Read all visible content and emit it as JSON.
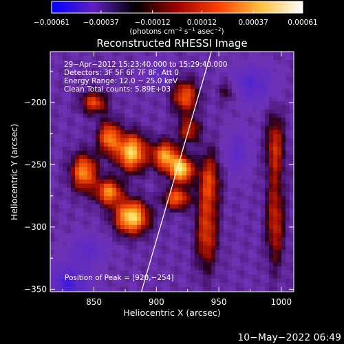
{
  "chart_data": {
    "type": "heatmap",
    "title": "Reconstructed RHESSI Image",
    "xlabel": "Heliocentric X (arcsec)",
    "ylabel": "Heliocentric Y (arcsec)",
    "xlim": [
      815,
      1010
    ],
    "ylim": [
      -352,
      -159
    ],
    "x_ticks": [
      {
        "value": 850,
        "label": "850"
      },
      {
        "value": 900,
        "label": "900"
      },
      {
        "value": 950,
        "label": "950"
      },
      {
        "value": 1000,
        "label": "1000"
      }
    ],
    "y_ticks": [
      {
        "value": -200,
        "label": "−200"
      },
      {
        "value": -250,
        "label": "−250"
      },
      {
        "value": -300,
        "label": "−300"
      },
      {
        "value": -350,
        "label": "−350"
      }
    ],
    "colorbar": {
      "range": [
        -0.00061,
        0.00061
      ],
      "tick_values": [
        -0.00061,
        -0.00037,
        -0.00012,
        0.00012,
        0.00037,
        0.00061
      ],
      "tick_labels": [
        "−0.00061",
        "−0.00037",
        "−0.00012",
        "0.00012",
        "0.00037",
        "0.00061"
      ],
      "unit_label_parts": [
        "(photons cm",
        "−2",
        " s",
        "−1",
        " asec",
        "−2",
        ")"
      ],
      "colors": [
        "#0000ff",
        "#6020c0",
        "#000000",
        "#a00000",
        "#ff4000",
        "#ffc040",
        "#ffffff"
      ]
    },
    "annotations": [
      "29−Apr−2012 15:23:40.000 to 15:29:40.000",
      "Detectors: 3F 5F 6F 7F 8F, Att 0",
      "Energy Range: 12.0 − 25.0 keV",
      "Clean     Total counts: 5.89E+03"
    ],
    "peak_label": "Position of Peak = [920,−254]",
    "peak": {
      "x": 920,
      "y": -254
    },
    "limb_line": [
      {
        "x": 888,
        "y": -352
      },
      {
        "x": 944,
        "y": -159
      }
    ],
    "sources": [
      {
        "x": 880,
        "y": -292,
        "rx": 9,
        "ry": 9,
        "amp": 1.0
      },
      {
        "x": 880,
        "y": -240,
        "rx": 8,
        "ry": 10,
        "amp": 0.95
      },
      {
        "x": 862,
        "y": -272,
        "rx": 7,
        "ry": 7,
        "amp": 0.75
      },
      {
        "x": 842,
        "y": -256,
        "rx": 7,
        "ry": 10,
        "amp": 0.75
      },
      {
        "x": 862,
        "y": -228,
        "rx": 6,
        "ry": 9,
        "amp": 0.7
      },
      {
        "x": 850,
        "y": -200,
        "rx": 7,
        "ry": 6,
        "amp": 0.55
      },
      {
        "x": 920,
        "y": -254,
        "rx": 6,
        "ry": 7,
        "amp": 1.0
      },
      {
        "x": 907,
        "y": -243,
        "rx": 7,
        "ry": 8,
        "amp": 0.8
      },
      {
        "x": 916,
        "y": -277,
        "rx": 7,
        "ry": 6,
        "amp": 0.65
      },
      {
        "x": 923,
        "y": -195,
        "rx": 7,
        "ry": 9,
        "amp": 0.6
      },
      {
        "x": 926,
        "y": -222,
        "rx": 6,
        "ry": 7,
        "amp": 0.45
      },
      {
        "x": 942,
        "y": -263,
        "rx": 6,
        "ry": 16,
        "amp": 0.5
      },
      {
        "x": 940,
        "y": -305,
        "rx": 6,
        "ry": 20,
        "amp": 0.5
      },
      {
        "x": 995,
        "y": -235,
        "rx": 5,
        "ry": 18,
        "amp": 0.45
      },
      {
        "x": 995,
        "y": -295,
        "rx": 5,
        "ry": 25,
        "amp": 0.45
      },
      {
        "x": 958,
        "y": -190,
        "rx": 6,
        "ry": 7,
        "amp": 0.3
      }
    ],
    "negative_sources": [
      {
        "x": 830,
        "y": -345,
        "rx": 12,
        "ry": 10,
        "amp": 0.55
      },
      {
        "x": 845,
        "y": -318,
        "rx": 10,
        "ry": 8,
        "amp": 0.35
      },
      {
        "x": 975,
        "y": -185,
        "rx": 12,
        "ry": 10,
        "amp": 0.45
      },
      {
        "x": 965,
        "y": -240,
        "rx": 6,
        "ry": 12,
        "amp": 0.35
      },
      {
        "x": 900,
        "y": -175,
        "rx": 8,
        "ry": 6,
        "amp": 0.3
      }
    ]
  },
  "footer": {
    "date": "10−May−2022 06:49"
  }
}
